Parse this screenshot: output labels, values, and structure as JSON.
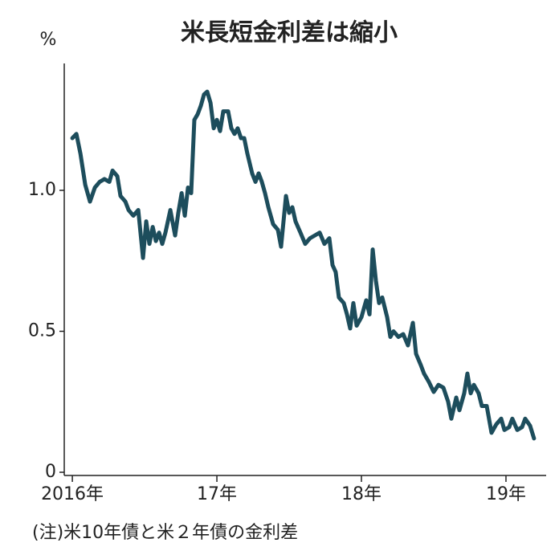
{
  "chart_data": {
    "type": "line",
    "title": "米長短金利差は縮小",
    "y_label": "%",
    "note": "(注)米10年債と米２年債の金利差",
    "xlim": [
      2015.944,
      2019.278
    ],
    "xticks": [
      {
        "value": 2016,
        "label": "2016年"
      },
      {
        "value": 2017,
        "label": "17年"
      },
      {
        "value": 2018,
        "label": "18年"
      },
      {
        "value": 2019,
        "label": "19年"
      }
    ],
    "ylim": [
      0,
      1.45
    ],
    "yticks": [
      0,
      0.5,
      {
        "value": 1,
        "label": "1.0"
      }
    ],
    "grid": false,
    "series": [
      {
        "color": "#1d4d5c",
        "x": [
          2016.0,
          2016.028,
          2016.056,
          2016.089,
          2016.122,
          2016.156,
          2016.189,
          2016.222,
          2016.256,
          2016.278,
          2016.311,
          2016.333,
          2016.367,
          2016.389,
          2016.422,
          2016.456,
          2016.489,
          2016.511,
          2016.533,
          2016.556,
          2016.578,
          2016.6,
          2016.622,
          2016.644,
          2016.678,
          2016.711,
          2016.733,
          2016.756,
          2016.778,
          2016.8,
          2016.822,
          2016.844,
          2016.867,
          2016.889,
          2016.911,
          2016.933,
          2016.956,
          2016.978,
          2017.0,
          2017.022,
          2017.044,
          2017.078,
          2017.1,
          2017.122,
          2017.144,
          2017.167,
          2017.189,
          2017.211,
          2017.244,
          2017.267,
          2017.289,
          2017.311,
          2017.333,
          2017.356,
          2017.389,
          2017.422,
          2017.444,
          2017.478,
          2017.5,
          2017.522,
          2017.544,
          2017.578,
          2017.611,
          2017.644,
          2017.678,
          2017.711,
          2017.744,
          2017.778,
          2017.8,
          2017.822,
          2017.844,
          2017.878,
          2017.9,
          2017.922,
          2017.944,
          2017.967,
          2018.0,
          2018.033,
          2018.056,
          2018.078,
          2018.1,
          2018.122,
          2018.144,
          2018.178,
          2018.2,
          2018.222,
          2018.256,
          2018.289,
          2018.322,
          2018.356,
          2018.378,
          2018.411,
          2018.433,
          2018.467,
          2018.5,
          2018.533,
          2018.567,
          2018.6,
          2018.622,
          2018.656,
          2018.678,
          2018.711,
          2018.733,
          2018.756,
          2018.778,
          2018.811,
          2018.833,
          2018.867,
          2018.9,
          2018.933,
          2018.967,
          2018.989,
          2019.022,
          2019.044,
          2019.078,
          2019.111,
          2019.133,
          2019.167,
          2019.194
        ],
        "values": [
          1.185,
          1.2,
          1.13,
          1.02,
          0.96,
          1.01,
          1.03,
          1.04,
          1.03,
          1.07,
          1.05,
          0.98,
          0.96,
          0.93,
          0.91,
          0.93,
          0.76,
          0.89,
          0.81,
          0.87,
          0.82,
          0.85,
          0.81,
          0.85,
          0.93,
          0.84,
          0.92,
          0.99,
          0.91,
          1.01,
          0.99,
          1.25,
          1.27,
          1.3,
          1.34,
          1.35,
          1.31,
          1.22,
          1.25,
          1.21,
          1.28,
          1.28,
          1.22,
          1.2,
          1.22,
          1.185,
          1.185,
          1.13,
          1.06,
          1.03,
          1.06,
          1.03,
          0.99,
          0.94,
          0.88,
          0.86,
          0.8,
          0.98,
          0.92,
          0.94,
          0.89,
          0.85,
          0.81,
          0.83,
          0.84,
          0.85,
          0.81,
          0.83,
          0.735,
          0.71,
          0.62,
          0.6,
          0.56,
          0.51,
          0.6,
          0.52,
          0.55,
          0.61,
          0.56,
          0.79,
          0.68,
          0.6,
          0.62,
          0.55,
          0.48,
          0.5,
          0.48,
          0.49,
          0.45,
          0.53,
          0.42,
          0.38,
          0.35,
          0.32,
          0.285,
          0.31,
          0.3,
          0.25,
          0.19,
          0.265,
          0.22,
          0.28,
          0.35,
          0.28,
          0.31,
          0.28,
          0.235,
          0.235,
          0.14,
          0.17,
          0.19,
          0.15,
          0.16,
          0.19,
          0.15,
          0.16,
          0.19,
          0.165,
          0.12
        ]
      }
    ]
  }
}
